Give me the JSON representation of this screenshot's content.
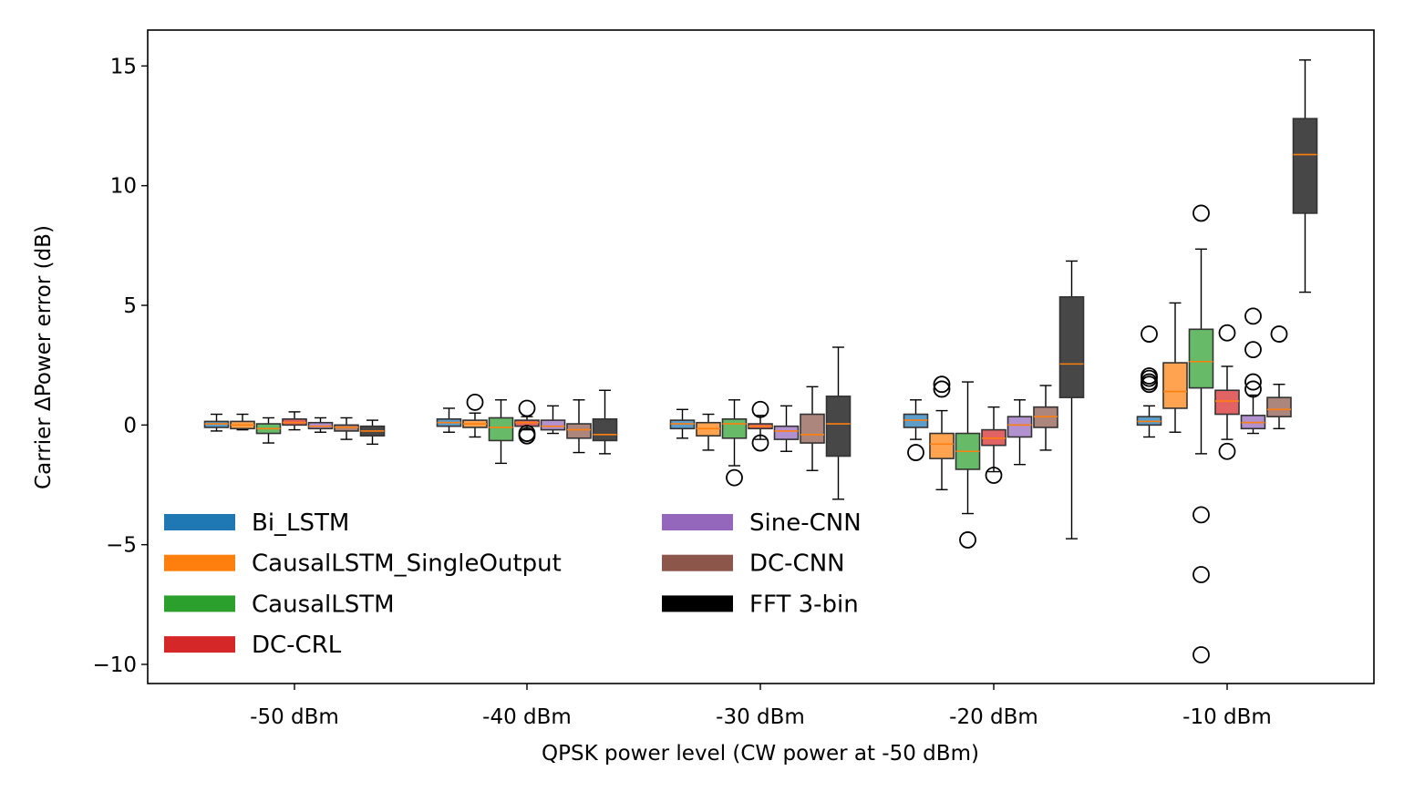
{
  "chart_data": {
    "type": "box",
    "title": "",
    "xlabel": "QPSK power level (CW power at -50 dBm)",
    "ylabel": "Carrier ΔPower error (dB)",
    "ylim": [
      -10.8,
      16.5
    ],
    "yticks": [
      -10,
      -5,
      0,
      5,
      10,
      15
    ],
    "ytick_labels": [
      "−10",
      "−5",
      "0",
      "5",
      "10",
      "15"
    ],
    "grid": false,
    "legend_position": "lower-left",
    "categories": [
      "-50 dBm",
      "-40 dBm",
      "-30 dBm",
      "-20 dBm",
      "-10 dBm"
    ],
    "series": [
      {
        "name": "Bi_LSTM",
        "color": "#1f77b4",
        "median_color": "#ff7f0e",
        "boxes": [
          {
            "whislo": -0.25,
            "q1": -0.1,
            "med": 0.05,
            "q3": 0.15,
            "whishi": 0.45,
            "fliers": []
          },
          {
            "whislo": -0.3,
            "q1": -0.05,
            "med": 0.1,
            "q3": 0.25,
            "whishi": 0.7,
            "fliers": []
          },
          {
            "whislo": -0.55,
            "q1": -0.15,
            "med": 0.05,
            "q3": 0.2,
            "whishi": 0.65,
            "fliers": []
          },
          {
            "whislo": -0.6,
            "q1": -0.1,
            "med": 0.2,
            "q3": 0.45,
            "whishi": 1.05,
            "fliers": [
              -1.15
            ]
          },
          {
            "whislo": -0.5,
            "q1": 0.0,
            "med": 0.15,
            "q3": 0.35,
            "whishi": 0.8,
            "fliers": [
              3.8,
              2.05,
              1.95,
              1.8,
              1.7
            ]
          }
        ]
      },
      {
        "name": "CausalLSTM_SingleOutput",
        "color": "#ff7f0e",
        "median_color": "#ff7f0e",
        "boxes": [
          {
            "whislo": -0.2,
            "q1": -0.15,
            "med": 0.0,
            "q3": 0.15,
            "whishi": 0.45,
            "fliers": []
          },
          {
            "whislo": -0.5,
            "q1": -0.1,
            "med": 0.05,
            "q3": 0.2,
            "whishi": 0.5,
            "fliers": [
              0.95
            ]
          },
          {
            "whislo": -1.05,
            "q1": -0.45,
            "med": -0.15,
            "q3": 0.1,
            "whishi": 0.45,
            "fliers": []
          },
          {
            "whislo": -2.7,
            "q1": -1.4,
            "med": -0.8,
            "q3": -0.35,
            "whishi": 0.6,
            "fliers": [
              1.7,
              1.5
            ]
          },
          {
            "whislo": -0.3,
            "q1": 0.7,
            "med": 1.4,
            "q3": 2.6,
            "whishi": 5.1,
            "fliers": []
          }
        ]
      },
      {
        "name": "CausalLSTM",
        "color": "#2ca02c",
        "median_color": "#ff7f0e",
        "boxes": [
          {
            "whislo": -0.75,
            "q1": -0.35,
            "med": -0.15,
            "q3": 0.05,
            "whishi": 0.3,
            "fliers": []
          },
          {
            "whislo": -1.6,
            "q1": -0.65,
            "med": -0.1,
            "q3": 0.3,
            "whishi": 1.05,
            "fliers": []
          },
          {
            "whislo": -1.7,
            "q1": -0.55,
            "med": 0.05,
            "q3": 0.25,
            "whishi": 1.05,
            "fliers": [
              -2.2
            ]
          },
          {
            "whislo": -3.7,
            "q1": -1.85,
            "med": -1.1,
            "q3": -0.35,
            "whishi": 1.8,
            "fliers": [
              -4.8
            ]
          },
          {
            "whislo": -1.2,
            "q1": 1.55,
            "med": 2.65,
            "q3": 4.0,
            "whishi": 7.35,
            "fliers": [
              8.85,
              -3.75,
              -6.25,
              -9.6
            ]
          }
        ]
      },
      {
        "name": "DC-CRL",
        "color": "#d62728",
        "median_color": "#ff7f0e",
        "boxes": [
          {
            "whislo": -0.2,
            "q1": 0.0,
            "med": 0.1,
            "q3": 0.25,
            "whishi": 0.55,
            "fliers": []
          },
          {
            "whislo": -0.2,
            "q1": -0.05,
            "med": 0.1,
            "q3": 0.2,
            "whishi": 0.35,
            "fliers": [
              0.7,
              -0.35,
              -0.45
            ]
          },
          {
            "whislo": -0.6,
            "q1": -0.15,
            "med": -0.05,
            "q3": 0.05,
            "whishi": 0.4,
            "fliers": [
              0.65,
              -0.75
            ]
          },
          {
            "whislo": -1.95,
            "q1": -0.85,
            "med": -0.55,
            "q3": -0.2,
            "whishi": 0.75,
            "fliers": [
              -2.1
            ]
          },
          {
            "whislo": -0.6,
            "q1": 0.45,
            "med": 1.0,
            "q3": 1.45,
            "whishi": 2.45,
            "fliers": [
              3.85,
              -1.1
            ]
          }
        ]
      },
      {
        "name": "Sine-CNN",
        "color": "#9467bd",
        "median_color": "#ff7f0e",
        "boxes": [
          {
            "whislo": -0.3,
            "q1": -0.15,
            "med": -0.05,
            "q3": 0.1,
            "whishi": 0.3,
            "fliers": []
          },
          {
            "whislo": -0.35,
            "q1": -0.2,
            "med": -0.05,
            "q3": 0.2,
            "whishi": 0.8,
            "fliers": []
          },
          {
            "whislo": -1.1,
            "q1": -0.6,
            "med": -0.25,
            "q3": -0.05,
            "whishi": 0.8,
            "fliers": []
          },
          {
            "whislo": -1.65,
            "q1": -0.5,
            "med": 0.0,
            "q3": 0.35,
            "whishi": 1.05,
            "fliers": []
          },
          {
            "whislo": -0.35,
            "q1": -0.15,
            "med": 0.1,
            "q3": 0.4,
            "whishi": 1.25,
            "fliers": [
              4.55,
              3.15,
              1.8,
              1.5
            ]
          }
        ]
      },
      {
        "name": "DC-CNN",
        "color": "#8c564b",
        "median_color": "#ff7f0e",
        "boxes": [
          {
            "whislo": -0.6,
            "q1": -0.25,
            "med": -0.1,
            "q3": 0.0,
            "whishi": 0.3,
            "fliers": []
          },
          {
            "whislo": -1.15,
            "q1": -0.55,
            "med": -0.2,
            "q3": 0.05,
            "whishi": 1.05,
            "fliers": []
          },
          {
            "whislo": -1.9,
            "q1": -0.75,
            "med": -0.4,
            "q3": 0.45,
            "whishi": 1.6,
            "fliers": []
          },
          {
            "whislo": -1.05,
            "q1": -0.1,
            "med": 0.35,
            "q3": 0.75,
            "whishi": 1.65,
            "fliers": []
          },
          {
            "whislo": -0.15,
            "q1": 0.35,
            "med": 0.65,
            "q3": 1.15,
            "whishi": 1.7,
            "fliers": [
              3.8
            ]
          }
        ]
      },
      {
        "name": "FFT 3-bin",
        "color": "#000000",
        "median_color": "#ff7f0e",
        "boxes": [
          {
            "whislo": -0.8,
            "q1": -0.45,
            "med": -0.25,
            "q3": -0.05,
            "whishi": 0.2,
            "fliers": []
          },
          {
            "whislo": -1.2,
            "q1": -0.65,
            "med": -0.4,
            "q3": 0.25,
            "whishi": 1.45,
            "fliers": []
          },
          {
            "whislo": -3.1,
            "q1": -1.3,
            "med": 0.05,
            "q3": 1.2,
            "whishi": 3.25,
            "fliers": []
          },
          {
            "whislo": -4.75,
            "q1": 1.15,
            "med": 2.55,
            "q3": 5.35,
            "whishi": 6.85,
            "fliers": []
          },
          {
            "whislo": 5.55,
            "q1": 8.85,
            "med": 11.3,
            "q3": 12.8,
            "whishi": 15.25,
            "fliers": []
          }
        ]
      }
    ]
  }
}
